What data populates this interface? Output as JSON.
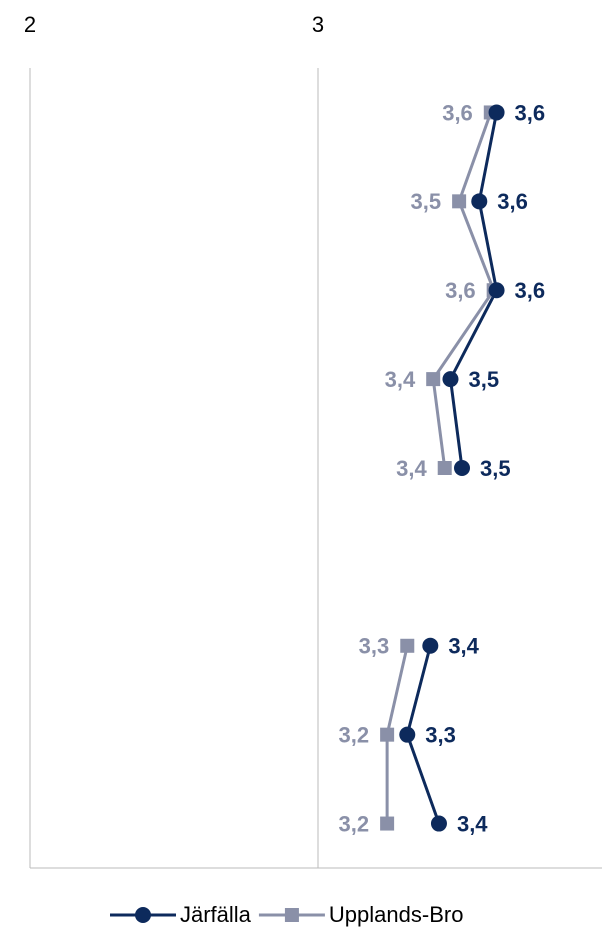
{
  "chart_data": {
    "type": "line",
    "categories": [
      null,
      null,
      null,
      null,
      null,
      null,
      null,
      null,
      null
    ],
    "xlim": [
      2,
      4
    ],
    "xticks": [
      2,
      3
    ],
    "grid": true,
    "legend": "bottom",
    "series": [
      {
        "name": "Järfälla",
        "color": "#0d2a5c",
        "marker": "circle",
        "values": [
          3.62,
          3.56,
          3.62,
          3.46,
          3.5,
          null,
          3.39,
          3.31,
          3.42
        ],
        "value_labels": [
          "3,6",
          "3,6",
          "3,6",
          "3,5",
          "3,5",
          null,
          "3,4",
          "3,3",
          "3,4"
        ]
      },
      {
        "name": "Upplands-Bro",
        "color": "#8a90a8",
        "marker": "square",
        "values": [
          3.6,
          3.49,
          3.61,
          3.4,
          3.44,
          null,
          3.31,
          3.24,
          3.24
        ],
        "value_labels": [
          "3,6",
          "3,5",
          "3,6",
          "3,4",
          "3,4",
          null,
          "3,3",
          "3,2",
          "3,2"
        ]
      }
    ]
  }
}
